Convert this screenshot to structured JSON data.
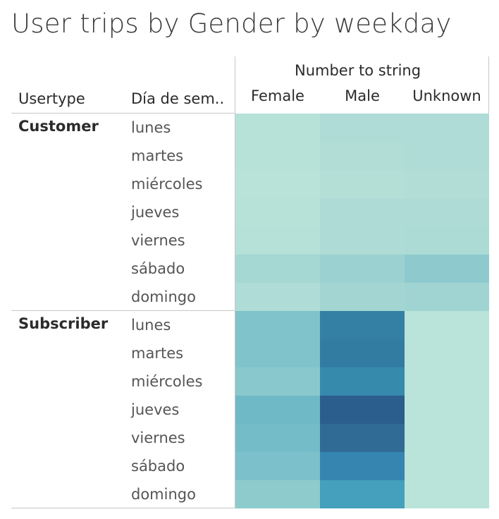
{
  "title": "User trips by Gender by weekday",
  "headers": {
    "usertype": "Usertype",
    "weekday": "Día de sem..",
    "column_group": "Number to string"
  },
  "chart_data": {
    "type": "heatmap",
    "title": "User trips by Gender by weekday",
    "columns": [
      "Female",
      "Male",
      "Unknown"
    ],
    "groups": [
      {
        "name": "Customer",
        "rows": [
          "lunes",
          "martes",
          "miércoles",
          "jueves",
          "viernes",
          "sábado",
          "domingo"
        ],
        "colors": [
          [
            "#b7e2d8",
            "#afdcd6",
            "#afdcd6"
          ],
          [
            "#b7e2d8",
            "#b1ddd6",
            "#afdcd6"
          ],
          [
            "#b9e3d9",
            "#b3dfd7",
            "#b1ddd6"
          ],
          [
            "#b7e2d8",
            "#aedbd5",
            "#aedbd5"
          ],
          [
            "#b5e1d8",
            "#aedbd5",
            "#acdad5"
          ],
          [
            "#a5d7d3",
            "#9bd2d1",
            "#8ecacd"
          ],
          [
            "#afdcd6",
            "#a3d6d3",
            "#a0d4d2"
          ]
        ]
      },
      {
        "name": "Subscriber",
        "rows": [
          "lunes",
          "martes",
          "miércoles",
          "jueves",
          "viernes",
          "sábado",
          "domingo"
        ],
        "colors": [
          [
            "#80c3cb",
            "#347fa4",
            "#bae4d9"
          ],
          [
            "#80c3cb",
            "#327ca2",
            "#bae4d9"
          ],
          [
            "#89c8cc",
            "#368aac",
            "#bae4d9"
          ],
          [
            "#6fb9c7",
            "#2b5e8c",
            "#bae4d9"
          ],
          [
            "#73bcc8",
            "#2f6b95",
            "#bae4d9"
          ],
          [
            "#7bc0ca",
            "#3585b0",
            "#bae4d9"
          ],
          [
            "#8ecbcd",
            "#44a0bc",
            "#bae4d9"
          ]
        ]
      }
    ]
  }
}
